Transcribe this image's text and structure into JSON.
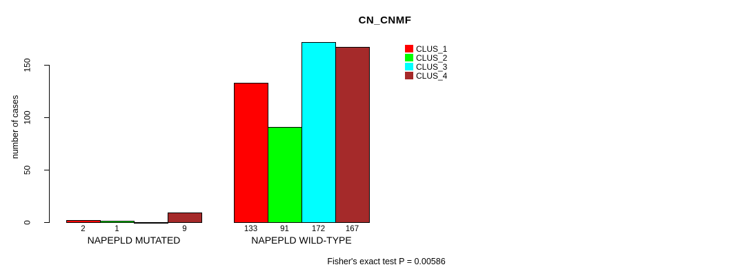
{
  "chart_data": {
    "type": "bar",
    "title": "CN_CNMF",
    "ylabel": "number of cases",
    "annotation": "Fisher's exact test P = 0.00586",
    "categories": [
      "NAPEPLD MUTATED",
      "NAPEPLD WILD-TYPE"
    ],
    "series": [
      {
        "name": "CLUS_1",
        "color": "#FF0000",
        "values": [
          2,
          133
        ]
      },
      {
        "name": "CLUS_2",
        "color": "#00FF00",
        "values": [
          1,
          91
        ]
      },
      {
        "name": "CLUS_3",
        "color": "#00FFFF",
        "values": [
          0,
          172
        ]
      },
      {
        "name": "CLUS_4",
        "color": "#A52A2A",
        "values": [
          9,
          167
        ]
      }
    ],
    "yticks": [
      0,
      50,
      100,
      150
    ],
    "ylim": [
      0,
      172
    ],
    "grid": false,
    "legend_position": "top-right",
    "bar_border_color": "#000000",
    "zero_value_labels_hidden": true
  }
}
